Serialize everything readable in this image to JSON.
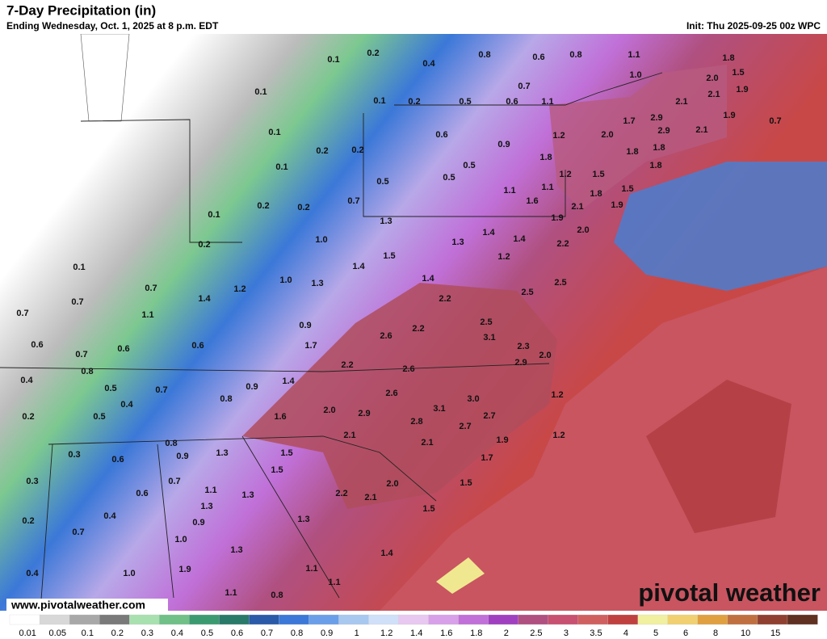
{
  "header": {
    "title": "7-Day Precipitation (in)",
    "subtitle": "Ending Wednesday, Oct. 1, 2025 at 8 p.m. EDT",
    "init": "Init: Thu 2025-09-25 00z WPC"
  },
  "footer": {
    "website": "www.pivotalweather.com",
    "logo": "pivotal weather"
  },
  "map": {
    "labels": [
      "0.1",
      "0.2",
      "0.4",
      "0.8",
      "0.6",
      "0.8",
      "1.1",
      "1.8",
      "0.1",
      "0.7",
      "1.0",
      "2.0",
      "1.5",
      "0.1",
      "0.2",
      "0.5",
      "0.6",
      "1.1",
      "2.1",
      "2.1",
      "1.9",
      "0.1",
      "0.6",
      "1.2",
      "2.0",
      "1.7",
      "2.9",
      "2.9",
      "2.1",
      "1.9",
      "0.7",
      "0.2",
      "0.2",
      "0.9",
      "1.8",
      "1.8",
      "1.8",
      "0.1",
      "0.5",
      "1.8",
      "0.5",
      "0.5",
      "1.2",
      "1.5",
      "1.5",
      "1.1",
      "1.1",
      "1.8",
      "0.7",
      "0.2",
      "0.2",
      "1.6",
      "2.1",
      "1.9",
      "0.1",
      "1.3",
      "1.9",
      "2.0",
      "1.4",
      "1.3",
      "1.4",
      "1.0",
      "0.2",
      "2.2",
      "1.5",
      "1.2",
      "0.1",
      "1.4",
      "1.4",
      "1.0",
      "2.5",
      "0.7",
      "1.2",
      "1.3",
      "2.5",
      "0.7",
      "1.4",
      "2.2",
      "0.7",
      "1.1",
      "0.9",
      "2.5",
      "3.1",
      "2.6",
      "2.2",
      "0.6",
      "0.6",
      "0.6",
      "1.7",
      "2.3",
      "2.0",
      "0.7",
      "2.2",
      "2.6",
      "2.9",
      "0.8",
      "0.4",
      "1.4",
      "0.9",
      "0.5",
      "0.7",
      "2.6",
      "3.0",
      "1.2",
      "0.4",
      "0.8",
      "3.1",
      "2.9",
      "2.0",
      "2.7",
      "0.2",
      "0.5",
      "1.6",
      "2.8",
      "2.7",
      "2.1",
      "1.9",
      "1.2",
      "2.1",
      "0.8",
      "1.5",
      "0.3",
      "0.6",
      "0.9",
      "1.3",
      "1.7",
      "1.5",
      "0.3",
      "0.7",
      "2.0",
      "1.5",
      "0.6",
      "1.1",
      "1.3",
      "2.2",
      "2.1",
      "1.3",
      "1.5",
      "0.4",
      "0.2",
      "1.3",
      "0.9",
      "0.7",
      "1.0",
      "1.3",
      "1.4",
      "1.1",
      "1.9",
      "1.0",
      "0.4",
      "1.1",
      "1.1",
      "0.8"
    ]
  },
  "legend": {
    "labels": [
      "0.01",
      "0.05",
      "0.1",
      "0.2",
      "0.3",
      "0.4",
      "0.5",
      "0.6",
      "0.7",
      "0.8",
      "0.9",
      "1",
      "1.2",
      "1.4",
      "1.6",
      "1.8",
      "2",
      "2.5",
      "3",
      "3.5",
      "4",
      "5",
      "6",
      "8",
      "10",
      "15"
    ],
    "colors": [
      "#ffffff",
      "#d8d8d8",
      "#a8a8a8",
      "#7a7a7a",
      "#a8e0b0",
      "#70c088",
      "#3c9a70",
      "#2a7a6a",
      "#2a5aa8",
      "#3b78d8",
      "#6a9ee8",
      "#a8c8f0",
      "#d0e0f8",
      "#e8c8f0",
      "#d8a0e8",
      "#c070d8",
      "#a040c0",
      "#b05080",
      "#c85070",
      "#d06060",
      "#c04040",
      "#f0f0a0",
      "#f0d070",
      "#e0a040",
      "#c07040",
      "#904030",
      "#603020"
    ]
  }
}
